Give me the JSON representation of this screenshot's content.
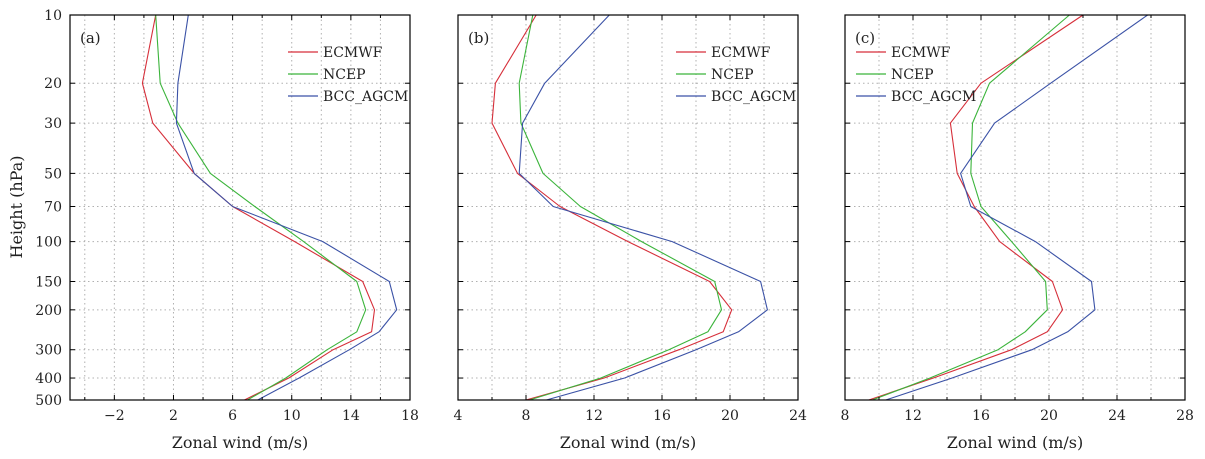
{
  "figure": {
    "ylabel": "Height (hPa)",
    "y_ticks": [
      10,
      20,
      30,
      50,
      70,
      100,
      150,
      200,
      300,
      400,
      500
    ],
    "y_scale": "log",
    "ylim": [
      500,
      10
    ],
    "grid": true
  },
  "chart_data": [
    {
      "type": "line",
      "panel_label": "(a)",
      "xlabel": "Zonal wind (m/s)",
      "xlim": [
        -5,
        18
      ],
      "x_ticks": [
        -2,
        2,
        6,
        10,
        14,
        18
      ],
      "x_tick_labels": [
        "−2",
        "2",
        "6",
        "10",
        "14",
        "18"
      ],
      "levels": [
        10,
        20,
        30,
        50,
        70,
        100,
        150,
        200,
        250,
        300,
        400,
        500
      ],
      "legend_position": "top-right",
      "series": [
        {
          "name": "ECMWF",
          "color": "#d62f3a",
          "values": [
            0.8,
            -0.1,
            0.6,
            3.4,
            6.0,
            10.2,
            14.8,
            15.6,
            15.4,
            12.8,
            9.8,
            6.8
          ]
        },
        {
          "name": "NCEP",
          "color": "#3bb43b",
          "values": [
            0.8,
            1.1,
            2.3,
            4.5,
            7.5,
            10.8,
            14.4,
            15.0,
            14.4,
            12.4,
            9.6,
            7.0
          ]
        },
        {
          "name": "BCC_AGCM",
          "color": "#3b52a6",
          "values": [
            3.0,
            2.3,
            2.2,
            3.4,
            6.0,
            12.1,
            16.6,
            17.1,
            15.9,
            13.9,
            10.5,
            7.7
          ]
        }
      ]
    },
    {
      "type": "line",
      "panel_label": "(b)",
      "xlabel": "Zonal wind (m/s)",
      "xlim": [
        4,
        24
      ],
      "x_ticks": [
        4,
        8,
        12,
        16,
        20,
        24
      ],
      "x_tick_labels": [
        "4",
        "8",
        "12",
        "16",
        "20",
        "24"
      ],
      "levels": [
        10,
        20,
        30,
        50,
        70,
        100,
        150,
        200,
        250,
        300,
        400,
        500
      ],
      "legend_position": "top-right",
      "series": [
        {
          "name": "ECMWF",
          "color": "#d62f3a",
          "values": [
            8.6,
            6.2,
            6.0,
            7.5,
            10.0,
            14.0,
            18.8,
            20.1,
            19.6,
            17.0,
            12.6,
            8.0
          ]
        },
        {
          "name": "NCEP",
          "color": "#3bb43b",
          "values": [
            8.4,
            7.6,
            7.7,
            9.0,
            11.2,
            14.8,
            19.1,
            19.5,
            18.7,
            16.4,
            12.4,
            8.2
          ]
        },
        {
          "name": "BCC_AGCM",
          "color": "#3b52a6",
          "values": [
            12.9,
            9.1,
            7.8,
            7.6,
            9.6,
            16.6,
            21.8,
            22.2,
            20.5,
            18.0,
            13.8,
            9.2
          ]
        }
      ]
    },
    {
      "type": "line",
      "panel_label": "(c)",
      "xlabel": "Zonal wind (m/s)",
      "xlim": [
        8,
        28
      ],
      "x_ticks": [
        8,
        12,
        16,
        20,
        24,
        28
      ],
      "x_tick_labels": [
        "8",
        "12",
        "16",
        "20",
        "24",
        "28"
      ],
      "levels": [
        10,
        20,
        30,
        50,
        70,
        100,
        150,
        200,
        250,
        300,
        400,
        500
      ],
      "legend_position": "top-right",
      "series": [
        {
          "name": "ECMWF",
          "color": "#d62f3a",
          "values": [
            22.0,
            16.0,
            14.2,
            14.6,
            15.6,
            17.1,
            20.2,
            20.8,
            19.9,
            17.8,
            13.2,
            9.4
          ]
        },
        {
          "name": "NCEP",
          "color": "#3bb43b",
          "values": [
            21.2,
            16.5,
            15.5,
            15.4,
            16.0,
            17.8,
            19.8,
            19.9,
            18.6,
            17.0,
            13.0,
            9.6
          ]
        },
        {
          "name": "BCC_AGCM",
          "color": "#3b52a6",
          "values": [
            25.8,
            20.1,
            16.8,
            14.8,
            15.4,
            19.2,
            22.5,
            22.7,
            21.1,
            19.0,
            14.3,
            10.4
          ]
        }
      ]
    }
  ]
}
